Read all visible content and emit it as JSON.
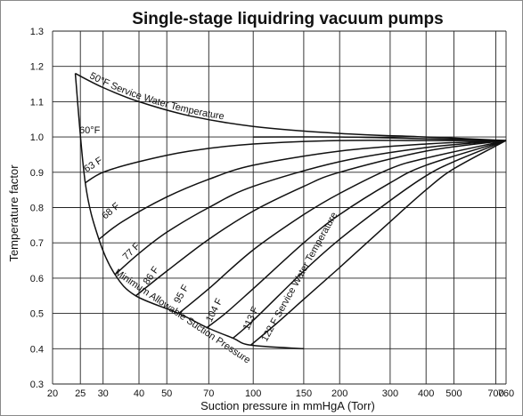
{
  "chart_data": {
    "type": "line",
    "title": "Single-stage liquidring vacuum pumps",
    "xlabel": "Suction pressure in mmHgA (Torr)",
    "ylabel": "Temperature factor",
    "x_scale": "log",
    "xlim": [
      20,
      760
    ],
    "ylim": [
      0.3,
      1.3
    ],
    "x_ticks": [
      20,
      25,
      30,
      40,
      50,
      70,
      100,
      150,
      200,
      300,
      400,
      500,
      700,
      760
    ],
    "y_ticks": [
      0.3,
      0.4,
      0.5,
      0.6,
      0.7,
      0.8,
      0.9,
      1.0,
      1.1,
      1.2,
      1.3
    ],
    "grid": true,
    "series": [
      {
        "name": "50°F Service Water Temperature",
        "label": "50°F Service Water Temperature",
        "x": [
          24,
          30,
          40,
          60,
          100,
          200,
          400,
          760
        ],
        "y": [
          1.18,
          1.14,
          1.1,
          1.06,
          1.03,
          1.01,
          1.0,
          0.99
        ]
      },
      {
        "name": "60°F",
        "label": "60°F",
        "x": [
          100,
          200,
          400,
          760
        ],
        "y": [
          1.0,
          1.0,
          0.995,
          0.99
        ]
      },
      {
        "name": "63°F",
        "label": "63 F",
        "x": [
          26,
          30,
          40,
          60,
          100,
          200,
          400,
          760
        ],
        "y": [
          0.87,
          0.9,
          0.93,
          0.96,
          0.98,
          0.99,
          0.99,
          0.99
        ]
      },
      {
        "name": "68°F",
        "label": "68 F",
        "x": [
          29,
          35,
          50,
          70,
          100,
          200,
          400,
          760
        ],
        "y": [
          0.71,
          0.76,
          0.83,
          0.88,
          0.92,
          0.96,
          0.98,
          0.99
        ]
      },
      {
        "name": "77°F",
        "label": "77 F",
        "x": [
          33,
          40,
          50,
          70,
          100,
          200,
          400,
          760
        ],
        "y": [
          0.61,
          0.67,
          0.73,
          0.8,
          0.86,
          0.93,
          0.97,
          0.99
        ]
      },
      {
        "name": "86°F",
        "label": "86 F",
        "x": [
          39,
          50,
          70,
          100,
          150,
          200,
          400,
          760
        ],
        "y": [
          0.55,
          0.62,
          0.71,
          0.79,
          0.86,
          0.9,
          0.96,
          0.99
        ]
      },
      {
        "name": "95°F",
        "label": "95 F",
        "x": [
          55,
          70,
          100,
          150,
          200,
          300,
          400,
          760
        ],
        "y": [
          0.5,
          0.57,
          0.68,
          0.78,
          0.84,
          0.91,
          0.94,
          0.99
        ]
      },
      {
        "name": "104°F",
        "label": "104 F",
        "x": [
          69,
          80,
          100,
          150,
          200,
          300,
          400,
          760
        ],
        "y": [
          0.46,
          0.5,
          0.57,
          0.7,
          0.78,
          0.87,
          0.92,
          0.99
        ]
      },
      {
        "name": "113°F",
        "label": "113 F",
        "x": [
          85,
          100,
          150,
          200,
          300,
          400,
          500,
          760
        ],
        "y": [
          0.43,
          0.48,
          0.62,
          0.71,
          0.82,
          0.89,
          0.93,
          0.99
        ]
      },
      {
        "name": "122°F Service Water Temperature",
        "label": "122 F Service Water Temperature",
        "x": [
          98,
          120,
          150,
          200,
          300,
          400,
          500,
          760
        ],
        "y": [
          0.41,
          0.47,
          0.54,
          0.63,
          0.76,
          0.85,
          0.91,
          0.99
        ]
      },
      {
        "name": "Minimum Allowable Suction Pressure",
        "label": "Minimum Allowable Suction Pressure",
        "x": [
          24,
          26,
          29,
          33,
          39,
          55,
          69,
          85,
          98,
          150
        ],
        "y": [
          1.18,
          0.87,
          0.71,
          0.61,
          0.55,
          0.5,
          0.46,
          0.43,
          0.41,
          0.4
        ]
      }
    ]
  }
}
